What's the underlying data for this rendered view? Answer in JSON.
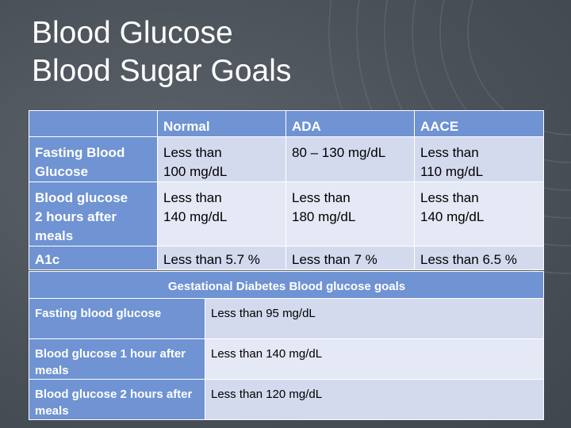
{
  "title": {
    "line1": "Blood Glucose",
    "line2": "Blood Sugar Goals"
  },
  "goals_table": {
    "headers": [
      "",
      "Normal",
      "ADA",
      "AACE"
    ],
    "rows": [
      {
        "label": "Fasting Blood Glucose",
        "normal": "Less than\n 100 mg/dL",
        "ada": "80 – 130 mg/dL",
        "aace": "Less than\n 110 mg/dL"
      },
      {
        "label": "Blood glucose\n 2 hours after meals",
        "normal": "Less than\n 140 mg/dL",
        "ada": "Less than\n 180 mg/dL",
        "aace": "Less than\n 140 mg/dL"
      },
      {
        "label": "A1c",
        "normal": "Less than 5.7 %",
        "ada": "Less than 7 %",
        "aace": "Less than 6.5 %"
      }
    ]
  },
  "gestational_table": {
    "header": "Gestational Diabetes Blood glucose goals",
    "rows": [
      {
        "label": "Fasting blood glucose",
        "value": "Less than 95 mg/dL"
      },
      {
        "label": "Blood glucose 1 hour after meals",
        "value": "Less than 140 mg/dL"
      },
      {
        "label": "Blood glucose 2 hours after meals",
        "value": "Less than 120 mg/dL"
      }
    ]
  },
  "colors": {
    "background": "#4a5058",
    "header_fill": "#6f93d3",
    "cell_fill": "#d4daee",
    "cell_fill_alt": "#e5e8f5",
    "title_text": "#ffffff"
  }
}
